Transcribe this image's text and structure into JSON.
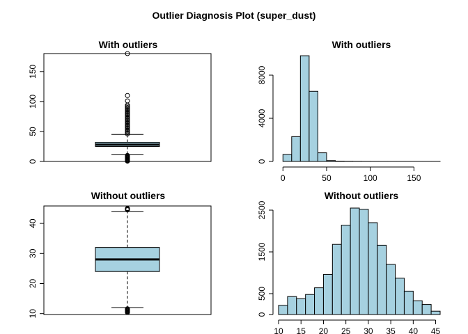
{
  "main_title": "Outlier Diagnosis Plot (super_dust)",
  "chart_data": [
    {
      "type": "boxplot",
      "title": "With outliers",
      "ylim": [
        0,
        180
      ],
      "yticks": [
        0,
        50,
        100,
        150
      ],
      "box": {
        "lower_whisker": 11,
        "q1": 25,
        "median": 28,
        "q3": 32,
        "upper_whisker": 45
      },
      "outliers": [
        180,
        110,
        101,
        94,
        92,
        90,
        88,
        86,
        84,
        82,
        80,
        78,
        76,
        74,
        72,
        70,
        68,
        66,
        64,
        62,
        60,
        58,
        56,
        54,
        52,
        50,
        48,
        46,
        10,
        9,
        8,
        7,
        6,
        5,
        4,
        3,
        2,
        1,
        0.5
      ]
    },
    {
      "type": "bar",
      "subtype": "histogram",
      "title": "With outliers",
      "xlim": [
        -5,
        180
      ],
      "ylim": [
        0,
        10000
      ],
      "xticks": [
        0,
        50,
        100,
        150
      ],
      "yticks": [
        0,
        4000,
        8000
      ],
      "bins": [
        {
          "x0": 0,
          "x1": 10,
          "count": 650
        },
        {
          "x0": 10,
          "x1": 20,
          "count": 2300
        },
        {
          "x0": 20,
          "x1": 30,
          "count": 9800
        },
        {
          "x0": 30,
          "x1": 40,
          "count": 6500
        },
        {
          "x0": 40,
          "x1": 50,
          "count": 800
        },
        {
          "x0": 50,
          "x1": 60,
          "count": 80
        },
        {
          "x0": 60,
          "x1": 70,
          "count": 25
        },
        {
          "x0": 70,
          "x1": 80,
          "count": 15
        },
        {
          "x0": 80,
          "x1": 90,
          "count": 10
        },
        {
          "x0": 90,
          "x1": 100,
          "count": 6
        },
        {
          "x0": 100,
          "x1": 110,
          "count": 4
        },
        {
          "x0": 110,
          "x1": 120,
          "count": 2
        },
        {
          "x0": 120,
          "x1": 130,
          "count": 1
        },
        {
          "x0": 130,
          "x1": 140,
          "count": 1
        },
        {
          "x0": 140,
          "x1": 150,
          "count": 1
        },
        {
          "x0": 150,
          "x1": 160,
          "count": 1
        },
        {
          "x0": 160,
          "x1": 170,
          "count": 1
        },
        {
          "x0": 170,
          "x1": 180,
          "count": 1
        }
      ]
    },
    {
      "type": "boxplot",
      "title": "Without outliers",
      "ylim": [
        9.7,
        45.8
      ],
      "yticks": [
        10,
        20,
        30,
        40
      ],
      "box": {
        "lower_whisker": 12,
        "q1": 24,
        "median": 28,
        "q3": 32,
        "upper_whisker": 44
      },
      "outliers": [
        45,
        44.9,
        44.8,
        44.7,
        44.6,
        44.5,
        11.6,
        11.4,
        11.2,
        11.0,
        10.8,
        10.6,
        10.4
      ]
    },
    {
      "type": "bar",
      "subtype": "histogram",
      "title": "Without outliers",
      "xlim": [
        10,
        46
      ],
      "ylim": [
        0,
        2600
      ],
      "xticks": [
        10,
        15,
        20,
        25,
        30,
        35,
        40,
        45
      ],
      "yticks": [
        0,
        500,
        1500,
        2500
      ],
      "bins": [
        {
          "x0": 10,
          "x1": 12,
          "count": 220
        },
        {
          "x0": 12,
          "x1": 14,
          "count": 430
        },
        {
          "x0": 14,
          "x1": 16,
          "count": 380
        },
        {
          "x0": 16,
          "x1": 18,
          "count": 480
        },
        {
          "x0": 18,
          "x1": 20,
          "count": 640
        },
        {
          "x0": 20,
          "x1": 22,
          "count": 960
        },
        {
          "x0": 22,
          "x1": 24,
          "count": 1680
        },
        {
          "x0": 24,
          "x1": 26,
          "count": 2140
        },
        {
          "x0": 26,
          "x1": 28,
          "count": 2550
        },
        {
          "x0": 28,
          "x1": 30,
          "count": 2520
        },
        {
          "x0": 30,
          "x1": 32,
          "count": 2200
        },
        {
          "x0": 32,
          "x1": 34,
          "count": 1660
        },
        {
          "x0": 34,
          "x1": 36,
          "count": 1200
        },
        {
          "x0": 36,
          "x1": 38,
          "count": 870
        },
        {
          "x0": 38,
          "x1": 40,
          "count": 560
        },
        {
          "x0": 40,
          "x1": 42,
          "count": 330
        },
        {
          "x0": 42,
          "x1": 44,
          "count": 240
        },
        {
          "x0": 44,
          "x1": 46,
          "count": 80
        }
      ]
    }
  ],
  "colors": {
    "fill": "#a6d1e0",
    "stroke": "#000000"
  }
}
